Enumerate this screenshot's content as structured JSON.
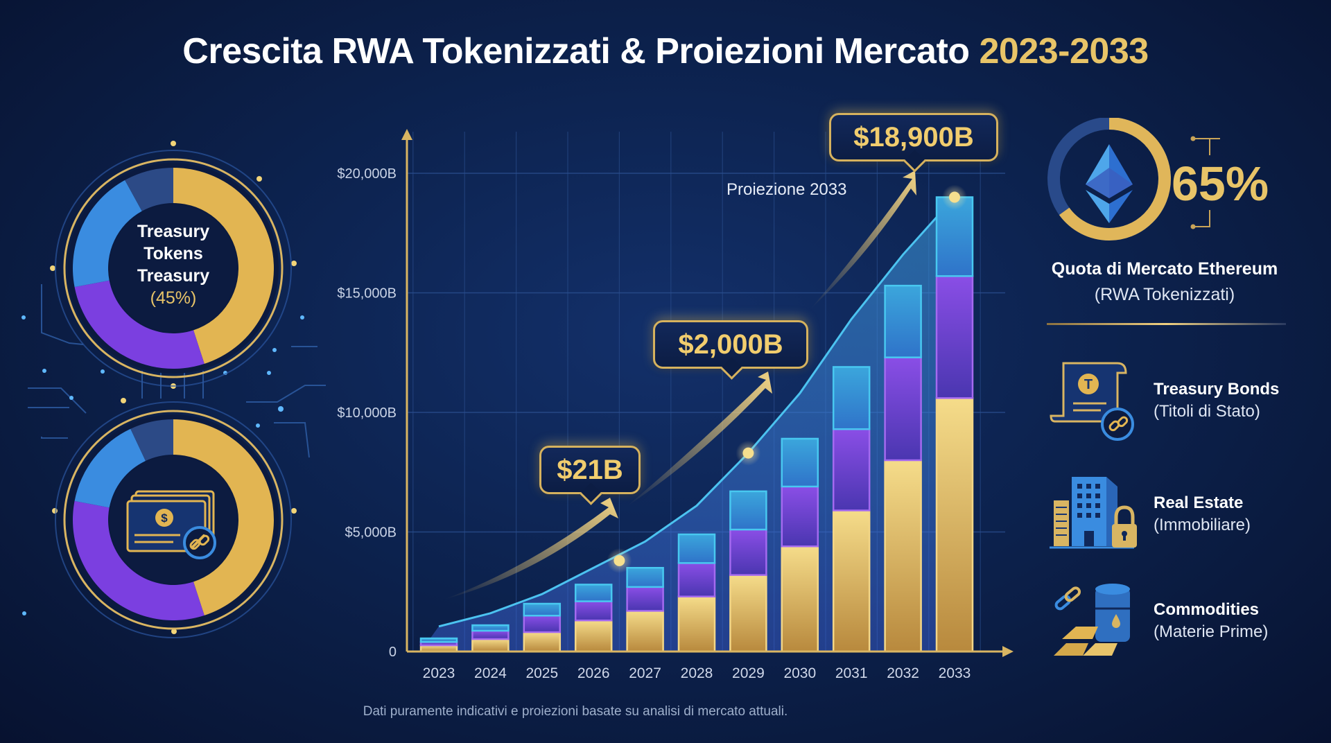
{
  "title": {
    "main": "Crescita RWA Tokenizzati & Proiezioni Mercato",
    "years": "2023-2033"
  },
  "left_panel": {
    "top_donut": {
      "label_lines": [
        "Treasury",
        "Tokens",
        "Treasury"
      ],
      "percent": "(45%)",
      "segments": [
        {
          "name": "gold",
          "share": 45,
          "color": "#e2b552"
        },
        {
          "name": "purple",
          "share": 27,
          "color": "#7b3fe0"
        },
        {
          "name": "blue",
          "share": 20,
          "color": "#3a8ce0"
        },
        {
          "name": "navy",
          "share": 8,
          "color": "#2c4a86"
        }
      ]
    },
    "bottom_donut": {
      "icon": "banknote-chain-icon",
      "segments": [
        {
          "name": "gold",
          "share": 45,
          "color": "#e2b552"
        },
        {
          "name": "purple",
          "share": 33,
          "color": "#7b3fe0"
        },
        {
          "name": "blue",
          "share": 15,
          "color": "#3a8ce0"
        },
        {
          "name": "navy",
          "share": 7,
          "color": "#2c4a86"
        }
      ]
    }
  },
  "chart_data": {
    "type": "bar",
    "stacked": true,
    "title": "Crescita RWA Tokenizzati & Proiezioni Mercato 2023-2033",
    "xlabel": "",
    "ylabel": "",
    "categories": [
      "2023",
      "2024",
      "2025",
      "2026",
      "2027",
      "2028",
      "2029",
      "2030",
      "2031",
      "2032",
      "2033"
    ],
    "yticks": [
      "0",
      "$5,000B",
      "$10,000B",
      "$15,000B",
      "$20,000B"
    ],
    "ylim": [
      0,
      20000
    ],
    "grid": true,
    "series": [
      {
        "name": "gold",
        "color": "#e6c26a",
        "values": [
          260,
          520,
          810,
          1300,
          1700,
          2300,
          3200,
          4400,
          5900,
          8000,
          10600
        ]
      },
      {
        "name": "purple",
        "color": "#7a42d8",
        "values": [
          140,
          350,
          690,
          800,
          1000,
          1400,
          1900,
          2500,
          3400,
          4300,
          5100
        ]
      },
      {
        "name": "blue",
        "color": "#3b9be0",
        "values": [
          150,
          230,
          500,
          700,
          800,
          1200,
          1600,
          2000,
          2600,
          3000,
          3300
        ]
      }
    ],
    "trend_line": {
      "color": "#4cc3f0",
      "values": [
        1050,
        1600,
        2400,
        3500,
        4600,
        6100,
        8300,
        10800,
        13900,
        16600,
        19000
      ]
    },
    "highlight_points": [
      {
        "category": "2026.5",
        "value": 3800
      },
      {
        "category": "2029",
        "value": 8300
      },
      {
        "category": "2033",
        "value": 19000
      }
    ],
    "annotations": [
      {
        "label": "$21B"
      },
      {
        "label": "$2,000B"
      },
      {
        "label": "$18,900B"
      },
      {
        "label": "Proiezione 2033"
      }
    ]
  },
  "callouts": {
    "c1": "$21B",
    "c2": "$2,000B",
    "c3": "$18,900B",
    "projection": "Proiezione 2033"
  },
  "footnote": "Dati puramente indicativi e proiezioni basate su analisi di mercato attuali.",
  "right_panel": {
    "eth_share": {
      "value": "65%",
      "share": 65,
      "caption_title": "Quota di Mercato Ethereum",
      "caption_sub": "(RWA Tokenizzati)"
    },
    "items": [
      {
        "icon": "treasury-bond-icon",
        "title": "Treasury Bonds",
        "subtitle": "(Titoli di Stato)"
      },
      {
        "icon": "real-estate-icon",
        "title": "Real Estate",
        "subtitle": "(Immobiliare)"
      },
      {
        "icon": "commodities-icon",
        "title": "Commodities",
        "subtitle": "(Materie Prime)"
      }
    ]
  },
  "colors": {
    "gold": "#e8c468",
    "purple": "#7b3fe0",
    "blue": "#3b9be0",
    "cyan": "#4cc3f0",
    "background": "#0d2452"
  }
}
